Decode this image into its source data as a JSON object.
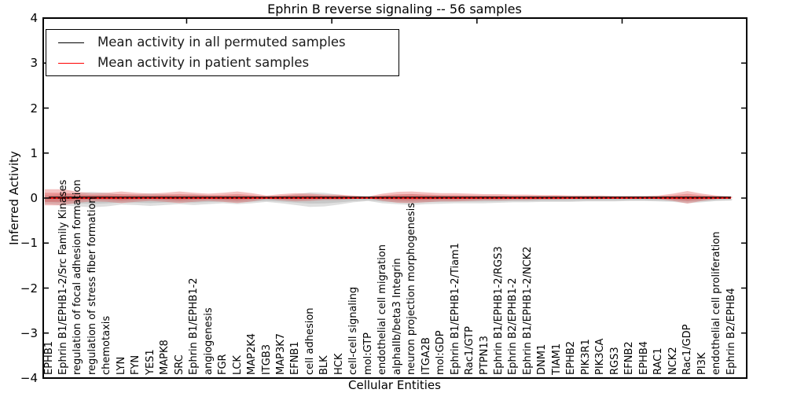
{
  "title": "Ephrin B reverse signaling -- 56 samples",
  "axes": {
    "ylabel": "Inferred Activity",
    "xlabel": "Cellular Entities",
    "ylim": [
      -4,
      4
    ],
    "yticks": [
      4,
      3,
      2,
      1,
      0,
      -1,
      -2,
      -3,
      -4
    ]
  },
  "legend": {
    "entries": [
      {
        "label": "Mean activity in all permuted samples",
        "color": "#000000"
      },
      {
        "label": "Mean activity in patient samples",
        "color": "#ff0000"
      }
    ],
    "position": "upper left"
  },
  "colors": {
    "background": "#ffffff",
    "axis": "#000000",
    "permuted_mean_line": "#000000",
    "patient_mean_line": "#ff0000",
    "permuted_band_fill": "#8c8c8c",
    "patient_band_fill": "#dd4444"
  },
  "chart_data": {
    "type": "line",
    "title": "Ephrin B reverse signaling -- 56 samples",
    "xlabel": "Cellular Entities",
    "ylabel": "Inferred Activity",
    "ylim": [
      -4,
      4
    ],
    "grid": false,
    "legend_position": "upper left",
    "categories": [
      "EPHB1",
      "Ephrin B1/EPHB1-2/Src Family Kinases",
      "regulation of focal adhesion formation",
      "regulation of stress fiber formation",
      "chemotaxis",
      "LYN",
      "FYN",
      "YES1",
      "MAPK8",
      "SRC",
      "Ephrin B1/EPHB1-2",
      "angiogenesis",
      "FGR",
      "LCK",
      "MAP2K4",
      "ITGB3",
      "MAP3K7",
      "EFNB1",
      "cell adhesion",
      "BLK",
      "HCK",
      "cell-cell signaling",
      "mol:GTP",
      "endothelial cell migration",
      "alphaIIb/beta3 Integrin",
      "neuron projection morphogenesis",
      "ITGA2B",
      "mol:GDP",
      "Ephrin B1/EPHB1-2/Tiam1",
      "Rac1/GTP",
      "PTPN13",
      "Ephrin B1/EPHB1-2/RGS3",
      "Ephrin B2/EPHB1-2",
      "Ephrin B1/EPHB1-2/NCK2",
      "DNM1",
      "TIAM1",
      "EPHB2",
      "PIK3R1",
      "PIK3CA",
      "RGS3",
      "EFNB2",
      "EPHB4",
      "RAC1",
      "NCK2",
      "Rac1/GDP",
      "PI3K",
      "endothelial cell proliferation",
      "Ephrin B2/EPHB4"
    ],
    "series": [
      {
        "name": "Mean activity in all permuted samples",
        "color": "#000000",
        "line_style": "solid+dashed-overlay",
        "values": [
          0,
          0,
          0,
          0,
          0,
          0,
          0,
          0,
          0,
          0,
          0,
          0,
          0,
          0,
          0,
          0,
          0,
          0,
          0,
          0,
          0,
          0,
          0,
          0,
          0,
          0,
          0,
          0,
          0,
          0,
          0,
          0,
          0,
          0,
          0,
          0,
          0,
          0,
          0,
          0,
          0,
          0,
          0,
          0,
          0,
          0,
          0,
          0
        ]
      },
      {
        "name": "Mean activity in patient samples",
        "color": "#ff0000",
        "line_style": "solid",
        "values": [
          0,
          0,
          0,
          0,
          0,
          0,
          0,
          0,
          0,
          0,
          0,
          0,
          0,
          0,
          0,
          0,
          0,
          0,
          0,
          0,
          0,
          0,
          0,
          0,
          0,
          0,
          0,
          0,
          0,
          0,
          0,
          0,
          0,
          0,
          0,
          0,
          0,
          0,
          0,
          0,
          0,
          0,
          0,
          0,
          0,
          0,
          0,
          0
        ]
      }
    ],
    "bands": [
      {
        "name": "permuted-samples-envelope",
        "color": "#8c8c8c",
        "opacity": 0.28,
        "center": 0,
        "halfwidths": [
          0.1,
          0.13,
          0.15,
          0.17,
          0.15,
          0.11,
          0.12,
          0.14,
          0.12,
          0.1,
          0.12,
          0.1,
          0.08,
          0.1,
          0.08,
          0.05,
          0.08,
          0.12,
          0.16,
          0.15,
          0.11,
          0.06,
          0.03,
          0.08,
          0.1,
          0.12,
          0.1,
          0.09,
          0.08,
          0.08,
          0.08,
          0.07,
          0.06,
          0.06,
          0.05,
          0.05,
          0.05,
          0.04,
          0.04,
          0.04,
          0.03,
          0.03,
          0.04,
          0.05,
          0.08,
          0.06,
          0.03,
          0.02
        ]
      },
      {
        "name": "patient-samples-envelope",
        "color": "#dd4444",
        "opacity": 0.33,
        "center": 0,
        "halfwidths": [
          0.18,
          0.18,
          0.12,
          0.09,
          0.1,
          0.13,
          0.1,
          0.08,
          0.1,
          0.13,
          0.1,
          0.08,
          0.1,
          0.13,
          0.09,
          0.04,
          0.07,
          0.09,
          0.08,
          0.06,
          0.06,
          0.04,
          0.02,
          0.08,
          0.12,
          0.13,
          0.11,
          0.09,
          0.09,
          0.08,
          0.07,
          0.07,
          0.06,
          0.06,
          0.05,
          0.05,
          0.04,
          0.04,
          0.04,
          0.03,
          0.03,
          0.03,
          0.04,
          0.08,
          0.14,
          0.08,
          0.04,
          0.02
        ]
      }
    ]
  },
  "layout_hints": {
    "top_axis_tick_x_categories": [
      10,
      20,
      30,
      40
    ]
  }
}
